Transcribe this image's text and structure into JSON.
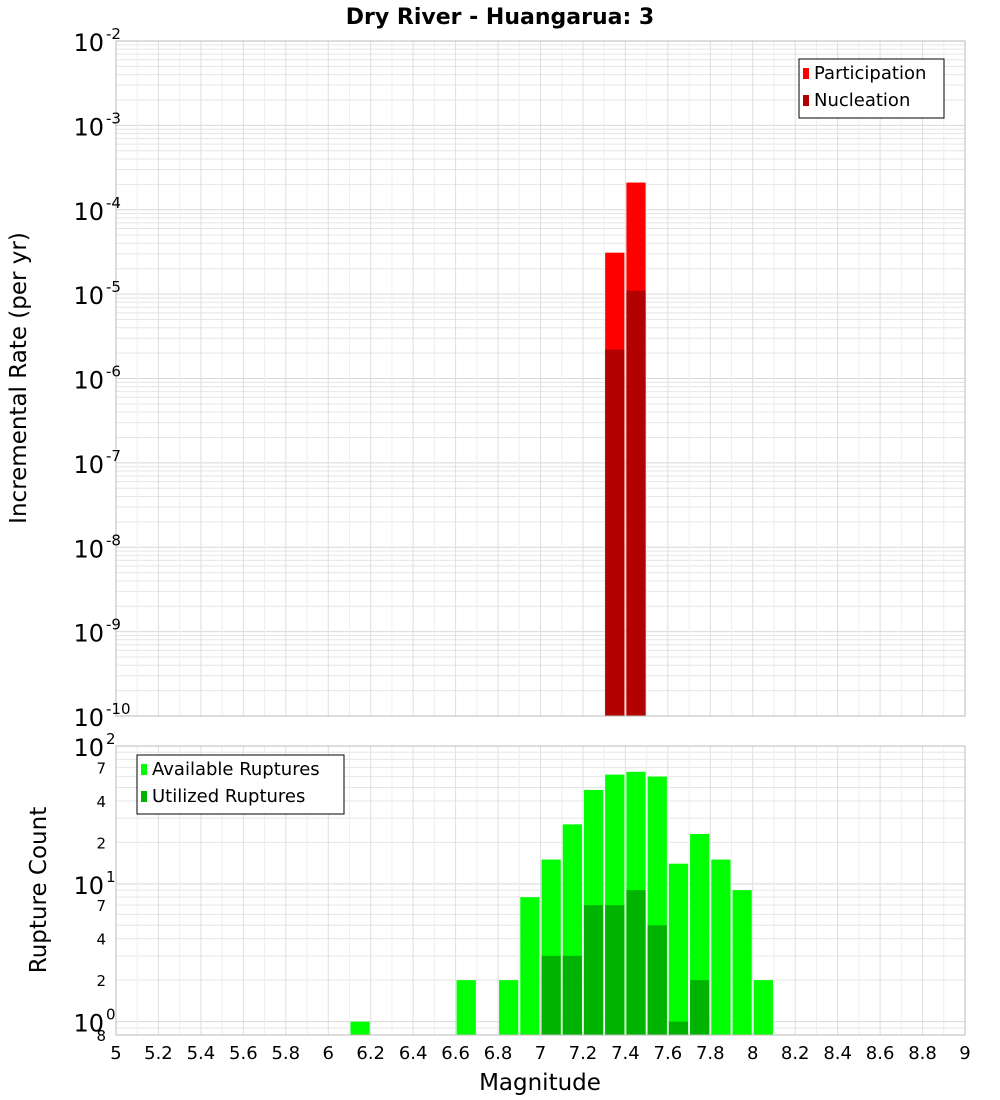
{
  "chart_data": {
    "title": "Dry River - Huangarua: 3",
    "xlabel": "Magnitude",
    "xlim": [
      5,
      9
    ],
    "x_ticks": [
      "5",
      "5.2",
      "5.4",
      "5.6",
      "5.8",
      "6",
      "6.2",
      "6.4",
      "6.6",
      "6.8",
      "7",
      "7.2",
      "7.4",
      "7.6",
      "7.8",
      "8",
      "8.2",
      "8.4",
      "8.6",
      "8.8",
      "9"
    ],
    "bin_width": 0.1,
    "colors": {
      "participation": "#ff0000",
      "nucleation": "#b30000",
      "available": "#00ff00",
      "utilized": "#00b300",
      "grid": "#e6e6e6",
      "frame": "#bbbbbb"
    },
    "panels": [
      {
        "type": "bar",
        "yscale": "log",
        "ylabel": "Incremental Rate (per yr)",
        "ylim": [
          1e-10,
          0.01
        ],
        "y_ticks": [
          {
            "value": 0.01,
            "base": "10",
            "exp": "-2"
          },
          {
            "value": 0.001,
            "base": "10",
            "exp": "-3"
          },
          {
            "value": 0.0001,
            "base": "10",
            "exp": "-4"
          },
          {
            "value": 1e-05,
            "base": "10",
            "exp": "-5"
          },
          {
            "value": 1e-06,
            "base": "10",
            "exp": "-6"
          },
          {
            "value": 1e-07,
            "base": "10",
            "exp": "-7"
          },
          {
            "value": 1e-08,
            "base": "10",
            "exp": "-8"
          },
          {
            "value": 1e-09,
            "base": "10",
            "exp": "-9"
          },
          {
            "value": 1e-10,
            "base": "10",
            "exp": "-10"
          }
        ],
        "legend": [
          "Participation",
          "Nucleation"
        ],
        "series": [
          {
            "name": "Participation",
            "color_key": "participation",
            "x": [
              7.35,
              7.45
            ],
            "values": [
              3.1e-05,
              0.00021
            ]
          },
          {
            "name": "Nucleation",
            "color_key": "nucleation",
            "x": [
              7.35,
              7.45
            ],
            "values": [
              2.2e-06,
              1.1e-05
            ]
          }
        ]
      },
      {
        "type": "bar",
        "yscale": "log",
        "ylabel": "Rupture Count",
        "ylim": [
          0.8,
          100
        ],
        "y_ticks": [
          {
            "value": 100,
            "base": "10",
            "exp": "2"
          },
          {
            "value": 10,
            "base": "10",
            "exp": "1"
          },
          {
            "value": 1,
            "base": "10",
            "exp": "0"
          }
        ],
        "y_minor_ticks": [
          {
            "value": 70,
            "label": "7"
          },
          {
            "value": 40,
            "label": "4"
          },
          {
            "value": 20,
            "label": "2"
          },
          {
            "value": 7,
            "label": "7"
          },
          {
            "value": 4,
            "label": "4"
          },
          {
            "value": 2,
            "label": "2"
          },
          {
            "value": 0.8,
            "label": "8"
          }
        ],
        "legend": [
          "Available Ruptures",
          "Utilized Ruptures"
        ],
        "series": [
          {
            "name": "Available Ruptures",
            "color_key": "available",
            "x": [
              6.15,
              6.65,
              6.85,
              6.95,
              7.05,
              7.15,
              7.25,
              7.35,
              7.45,
              7.55,
              7.65,
              7.75,
              7.85,
              7.95,
              8.05
            ],
            "values": [
              1,
              2,
              2,
              8,
              15,
              27,
              48,
              62,
              65,
              60,
              14,
              23,
              15,
              9,
              2
            ]
          },
          {
            "name": "Utilized Ruptures",
            "color_key": "utilized",
            "x": [
              7.05,
              7.15,
              7.25,
              7.35,
              7.45,
              7.55,
              7.65,
              7.75
            ],
            "values": [
              3,
              3,
              7,
              7,
              9,
              5,
              1,
              2
            ]
          }
        ]
      }
    ]
  }
}
